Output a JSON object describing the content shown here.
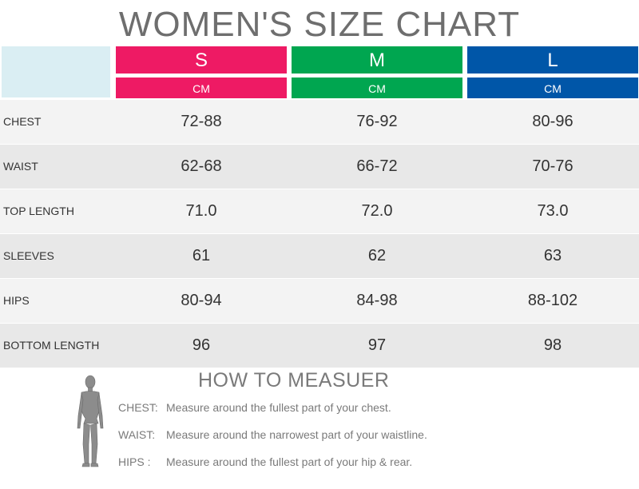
{
  "title": "WOMEN'S SIZE CHART",
  "colors": {
    "s": "#ee1a64",
    "m": "#00a650",
    "l": "#0056a8",
    "corner": "#daeef3",
    "row_light": "#f3f3f3",
    "row_dark": "#e8e8e8"
  },
  "sizes": [
    {
      "label": "S",
      "unit": "CM"
    },
    {
      "label": "M",
      "unit": "CM"
    },
    {
      "label": "L",
      "unit": "CM"
    }
  ],
  "rows": [
    {
      "label": "CHEST",
      "values": [
        "72-88",
        "76-92",
        "80-96"
      ]
    },
    {
      "label": "WAIST",
      "values": [
        "62-68",
        "66-72",
        "70-76"
      ]
    },
    {
      "label": "TOP LENGTH",
      "values": [
        "71.0",
        "72.0",
        "73.0"
      ]
    },
    {
      "label": "SLEEVES",
      "values": [
        "61",
        "62",
        "63"
      ]
    },
    {
      "label": "HIPS",
      "values": [
        "80-94",
        "84-98",
        "88-102"
      ]
    },
    {
      "label": "BOTTOM LENGTH",
      "values": [
        "96",
        "97",
        "98"
      ]
    }
  ],
  "howto": {
    "title": "HOW TO MEASUER",
    "figure_icon": "female-body-silhouette-icon",
    "items": [
      {
        "key": "CHEST:",
        "text": "Measure around the fullest part of your chest."
      },
      {
        "key": "WAIST:",
        "text": "Measure around the narrowest part of your waistline."
      },
      {
        "key": "HIPS  :",
        "text": "Measure around the fullest part of your hip & rear."
      }
    ]
  }
}
